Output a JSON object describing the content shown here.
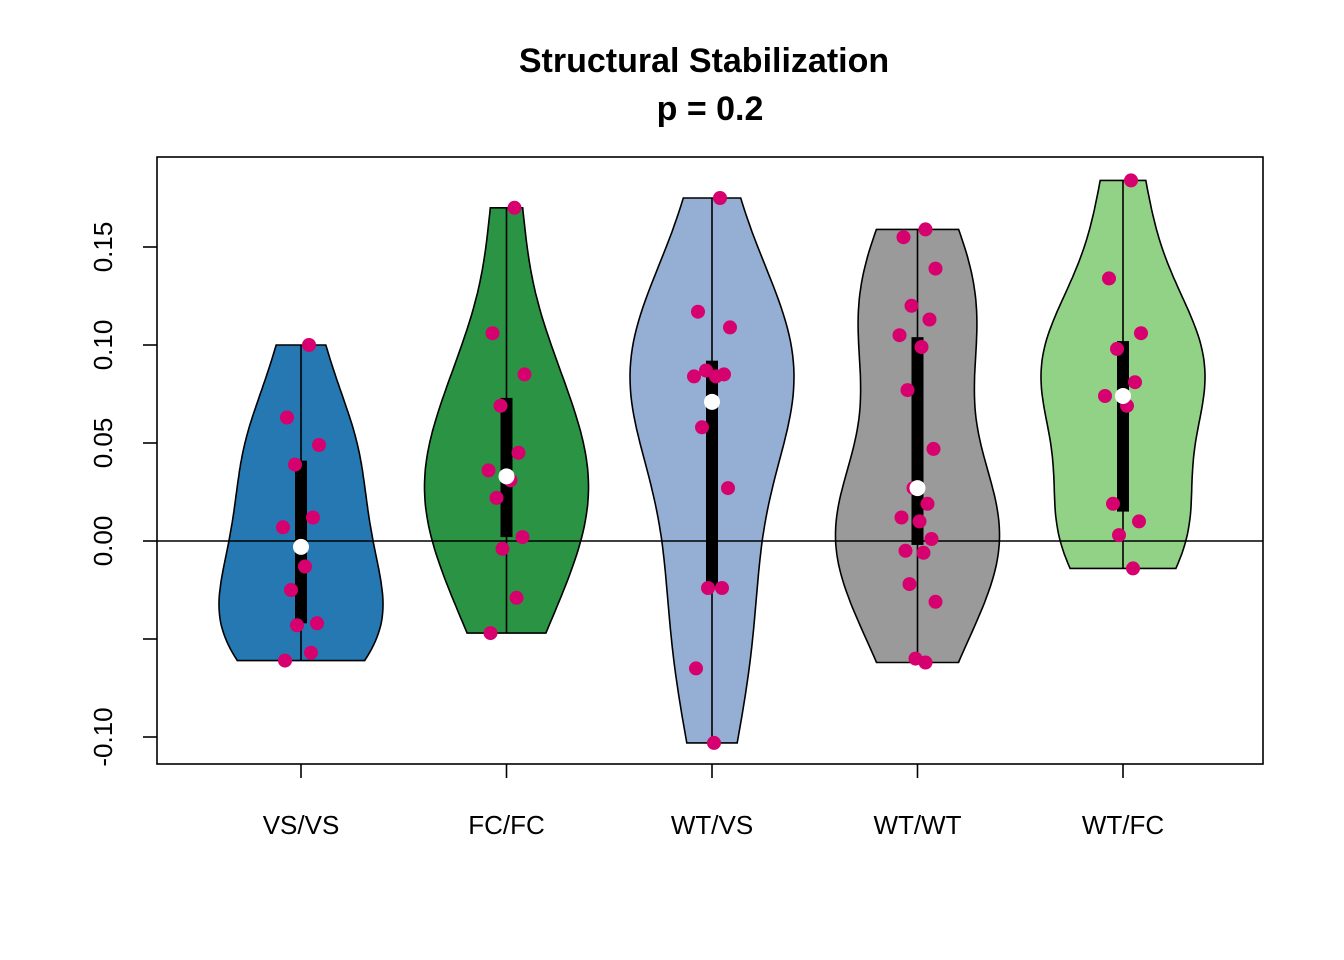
{
  "chart_data": {
    "type": "violin",
    "title": "Structural Stabilization",
    "subtitle": "p = 0.2",
    "xlabel": "",
    "ylabel": "",
    "ylim": [
      -0.114,
      0.197
    ],
    "yticks": [
      -0.1,
      -0.05,
      0.0,
      0.05,
      0.1,
      0.15
    ],
    "ytick_labels": [
      "-0.10",
      "",
      "0.00",
      "0.05",
      "0.10",
      "0.15"
    ],
    "reference_line": 0,
    "categories": [
      "VS/VS",
      "FC/FC",
      "WT/VS",
      "WT/WT",
      "WT/FC"
    ],
    "point_color": "#d6006e",
    "series": [
      {
        "name": "VS/VS",
        "color": "#2678b2",
        "min": -0.061,
        "max": 0.1,
        "median": -0.003,
        "q1": -0.042,
        "q3": 0.041,
        "points": [
          0.1,
          0.063,
          0.049,
          0.039,
          0.012,
          0.007,
          -0.013,
          -0.025,
          -0.042,
          -0.043,
          -0.057,
          -0.061
        ]
      },
      {
        "name": "FC/FC",
        "color": "#2a9444",
        "min": -0.047,
        "max": 0.17,
        "median": 0.033,
        "q1": 0.002,
        "q3": 0.073,
        "points": [
          0.17,
          0.106,
          0.085,
          0.069,
          0.045,
          0.036,
          0.031,
          0.022,
          0.002,
          -0.004,
          -0.029,
          -0.047
        ]
      },
      {
        "name": "WT/VS",
        "color": "#95afd4",
        "min": -0.103,
        "max": 0.175,
        "median": 0.071,
        "q1": -0.024,
        "q3": 0.092,
        "points": [
          0.175,
          0.117,
          0.109,
          0.087,
          0.085,
          0.084,
          0.084,
          0.058,
          0.027,
          -0.024,
          -0.024,
          -0.065,
          -0.103
        ]
      },
      {
        "name": "WT/WT",
        "color": "#9a9a9a",
        "min": -0.062,
        "max": 0.159,
        "median": 0.027,
        "q1": -0.002,
        "q3": 0.104,
        "points": [
          0.159,
          0.155,
          0.139,
          0.12,
          0.113,
          0.105,
          0.099,
          0.077,
          0.047,
          0.027,
          0.019,
          0.012,
          0.01,
          0.001,
          -0.005,
          -0.006,
          -0.022,
          -0.031,
          -0.06,
          -0.062
        ]
      },
      {
        "name": "WT/FC",
        "color": "#92d286",
        "min": -0.014,
        "max": 0.184,
        "median": 0.074,
        "q1": 0.015,
        "q3": 0.102,
        "points": [
          0.184,
          0.134,
          0.106,
          0.098,
          0.081,
          0.074,
          0.069,
          0.019,
          0.01,
          0.003,
          -0.014
        ]
      }
    ]
  }
}
